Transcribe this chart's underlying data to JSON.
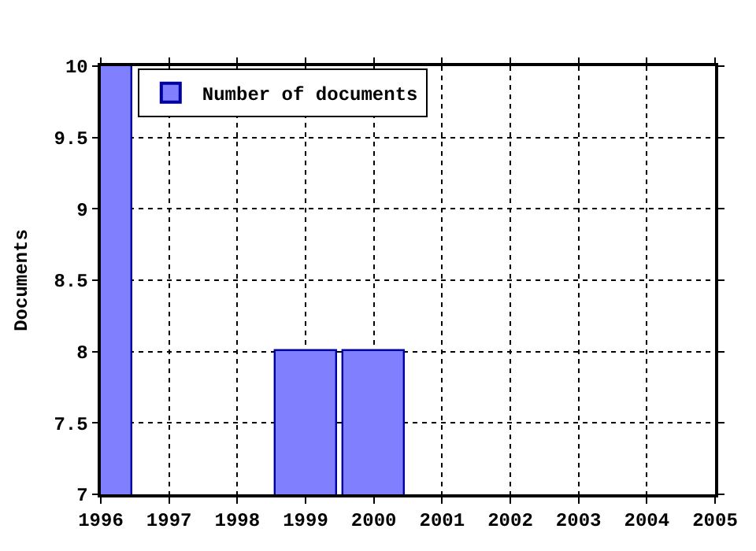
{
  "chart_data": {
    "type": "bar",
    "x": [
      1996,
      1999,
      2000
    ],
    "series": [
      {
        "name": "Number of documents",
        "color": "#8080ff",
        "values": [
          10,
          8,
          8
        ]
      }
    ],
    "ylabel": "Documents",
    "xlim": [
      1996,
      2005
    ],
    "xticks": [
      1996,
      1997,
      1998,
      1999,
      2000,
      2001,
      2002,
      2003,
      2004,
      2005
    ],
    "ylim": [
      7,
      10
    ],
    "yticks": [
      7,
      7.5,
      8,
      8.5,
      9,
      9.5,
      10
    ],
    "grid": true,
    "legend": "top left"
  }
}
